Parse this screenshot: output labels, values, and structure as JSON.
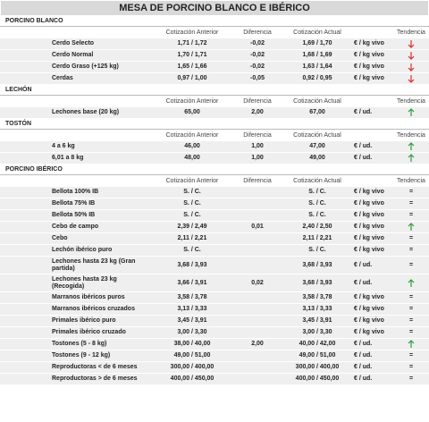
{
  "title": "MESA DE PORCINO BLANCO E IBÉRICO",
  "sections": [
    {
      "title": "PORCINO BLANCO",
      "headers": [
        "Cotización Anterior",
        "Diferencia",
        "Cotización Actual",
        "Tendencia"
      ],
      "rows": [
        {
          "name": "Cerdo Selecto",
          "prev": "1,71 / 1,72",
          "diff": "-0,02",
          "curr": "1,69 / 1,70",
          "unit": "€ / kg vivo",
          "trend": "down"
        },
        {
          "name": "Cerdo Normal",
          "prev": "1,70 / 1,71",
          "diff": "-0,02",
          "curr": "1,68 / 1,69",
          "unit": "€ / kg vivo",
          "trend": "down"
        },
        {
          "name": "Cerdo Graso (+125 kg)",
          "prev": "1,65 / 1,66",
          "diff": "-0,02",
          "curr": "1,63 / 1,64",
          "unit": "€ / kg vivo",
          "trend": "down"
        },
        {
          "name": "Cerdas",
          "prev": "0,97 / 1,00",
          "diff": "-0,05",
          "curr": "0,92 / 0,95",
          "unit": "€ / kg vivo",
          "trend": "down"
        }
      ]
    },
    {
      "title": "LECHÓN",
      "headers": [
        "Cotización Anterior",
        "Diferencia",
        "Cotización Actual",
        "Tendencia"
      ],
      "rows": [
        {
          "name": "Lechones base (20 kg)",
          "prev": "65,00",
          "diff": "2,00",
          "curr": "67,00",
          "unit": "€ / ud.",
          "trend": "up"
        }
      ]
    },
    {
      "title": "TOSTÓN",
      "headers": [
        "Cotización Anterior",
        "Diferencia",
        "Cotización Actual",
        "Tendencia"
      ],
      "rows": [
        {
          "name": "4 a 6 kg",
          "prev": "46,00",
          "diff": "1,00",
          "curr": "47,00",
          "unit": "€ / ud.",
          "trend": "up"
        },
        {
          "name": "6,01 a 8 kg",
          "prev": "48,00",
          "diff": "1,00",
          "curr": "49,00",
          "unit": "€ / ud.",
          "trend": "up"
        }
      ]
    },
    {
      "title": "PORCINO IBÉRICO",
      "headers": [
        "Cotización Anterior",
        "Diferencia",
        "Cotización Actual",
        "Tendencia"
      ],
      "rows": [
        {
          "name": "Bellota 100% IB",
          "prev": "S. / C.",
          "diff": null,
          "curr": "S. / C.",
          "unit": "€ / kg vivo",
          "trend": "="
        },
        {
          "name": "Bellota 75% IB",
          "prev": "S. / C.",
          "diff": null,
          "curr": "S. / C.",
          "unit": "€ / kg vivo",
          "trend": "="
        },
        {
          "name": "Bellota 50% IB",
          "prev": "S. / C.",
          "diff": null,
          "curr": "S. / C.",
          "unit": "€ / kg vivo",
          "trend": "="
        },
        {
          "name": "Cebo de campo",
          "prev": "2,39 / 2,49",
          "diff": "0,01",
          "curr": "2,40 / 2,50",
          "unit": "€ / kg vivo",
          "trend": "up"
        },
        {
          "name": "Cebo",
          "prev": "2,11 / 2,21",
          "diff": null,
          "curr": "2,11 / 2,21",
          "unit": "€ / kg vivo",
          "trend": "="
        },
        {
          "name": "Lechón ibérico puro",
          "prev": "S. / C.",
          "diff": null,
          "curr": "S. / C.",
          "unit": "€ / kg vivo",
          "trend": "="
        },
        {
          "name": "Lechones hasta 23 kg (Gran partida)",
          "prev": "3,68 / 3,93",
          "diff": null,
          "curr": "3,68 / 3,93",
          "unit": "€ / ud.",
          "trend": "="
        },
        {
          "name": "Lechones hasta 23 kg (Recogida)",
          "prev": "3,66 / 3,91",
          "diff": "0,02",
          "curr": "3,68 / 3,93",
          "unit": "€ / ud.",
          "trend": "up"
        },
        {
          "name": "Marranos ibéricos puros",
          "prev": "3,58 / 3,78",
          "diff": null,
          "curr": "3,58 / 3,78",
          "unit": "€ / kg vivo",
          "trend": "="
        },
        {
          "name": "Marranos ibéricos cruzados",
          "prev": "3,13 / 3,33",
          "diff": null,
          "curr": "3,13 / 3,33",
          "unit": "€ / kg vivo",
          "trend": "="
        },
        {
          "name": "Primales ibérico puro",
          "prev": "3,45 / 3,91",
          "diff": null,
          "curr": "3,45 / 3,91",
          "unit": "€ / kg vivo",
          "trend": "="
        },
        {
          "name": "Primales ibérico cruzado",
          "prev": "3,00 / 3,30",
          "diff": null,
          "curr": "3,00 / 3,30",
          "unit": "€ / kg vivo",
          "trend": "="
        },
        {
          "name": "Tostones (5 - 8 kg)",
          "prev": "38,00 / 40,00",
          "diff": "2,00",
          "curr": "40,00 / 42,00",
          "unit": "€ / ud.",
          "trend": "up"
        },
        {
          "name": "Tostones (9 - 12 kg)",
          "prev": "49,00 / 51,00",
          "diff": null,
          "curr": "49,00 / 51,00",
          "unit": "€ / ud.",
          "trend": "="
        },
        {
          "name": "Reproductoras < de 6 meses",
          "prev": "300,00 / 400,00",
          "diff": null,
          "curr": "300,00 / 400,00",
          "unit": "€ / ud.",
          "trend": "="
        },
        {
          "name": "Reproductoras > de 6 meses",
          "prev": "400,00 / 450,00",
          "diff": null,
          "curr": "400,00 / 450,00",
          "unit": "€ / ud.",
          "trend": "="
        }
      ]
    }
  ]
}
